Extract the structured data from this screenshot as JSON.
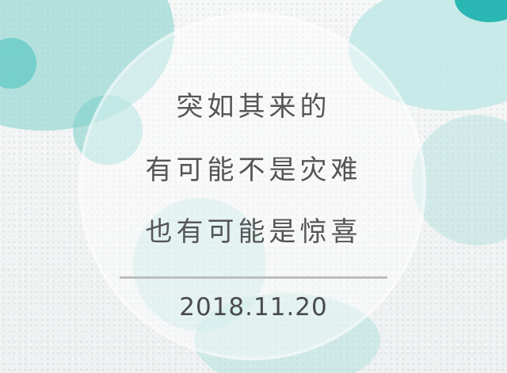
{
  "content": {
    "line_1": "突如其来的",
    "line_2": "有可能不是灾难",
    "line_3": "也有可能是惊喜",
    "date": "2018.11.20"
  },
  "colors": {
    "background": "#f3f4f4",
    "primary_bubble": "#91d5d1",
    "accent_bubble": "#2ab7b3",
    "text": "#555555",
    "date_text": "#4a4a4a",
    "divider": "#bdbdbd"
  }
}
